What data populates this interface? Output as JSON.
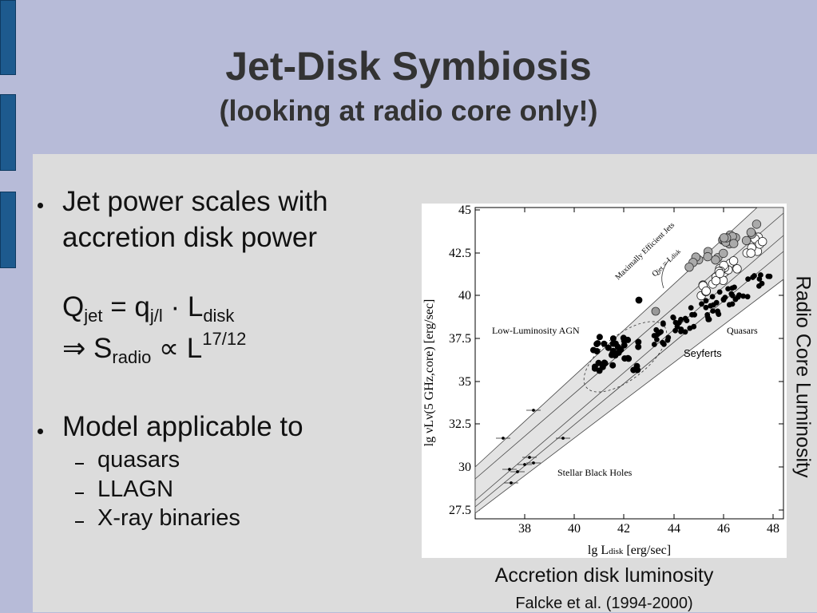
{
  "slide": {
    "title": "Jet-Disk Symbiosis",
    "subtitle": "(looking at radio core only!)"
  },
  "bullets": {
    "b1_line1": "Jet power scales with",
    "b1_line2": "accretion disk power",
    "formula1": {
      "Q": "Q",
      "jet": "jet",
      "eq": " = q",
      "jl": "j/l",
      "dot": " · L",
      "disk": "disk"
    },
    "formula2": {
      "implies": "⇒ S",
      "radio": "radio",
      "prop": " ∝ L",
      "exp": "17/12"
    },
    "b2": "Model applicable to",
    "subitems": [
      "quasars",
      "LLAGN",
      "X-ray binaries"
    ]
  },
  "plot": {
    "ylabel": "lg νLν(5 GHz,core) [erg/sec]",
    "xlabel": "lg L",
    "xlabel_sub": "disk",
    "xlabel_unit": " [erg/sec]",
    "xticks": [
      "38",
      "40",
      "42",
      "44",
      "46",
      "48"
    ],
    "yticks": [
      "45",
      "42.5",
      "40",
      "37.5",
      "35",
      "32.5",
      "30",
      "27.5"
    ],
    "regions": {
      "llagn": "Low-Luminosity AGN",
      "quasars": "Quasars",
      "seyferts": "Seyferts",
      "stellar": "Stellar Black Holes",
      "max_eff": "Maximally Efficient Jets",
      "q_jet": "Q",
      "q_jet_sub": "jet",
      "q_jet_eq": " = L",
      "q_jet_disk": "disk"
    }
  },
  "right_label": "Radio Core Luminosity",
  "caption": "Accretion disk luminosity",
  "credit": "Falcke et al. (1994-2000)"
}
